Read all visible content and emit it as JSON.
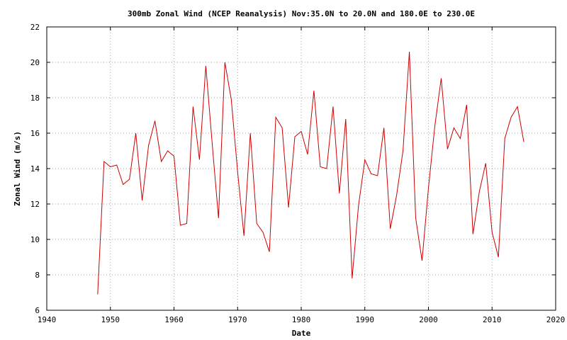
{
  "chart_data": {
    "type": "line",
    "title": "300mb Zonal Wind (NCEP Reanalysis) Nov:35.0N to 20.0N and 180.0E to 230.0E",
    "xlabel": "Date",
    "ylabel": "Zonal Wind (m/s)",
    "xlim": [
      1940,
      2020
    ],
    "ylim": [
      6,
      22
    ],
    "grid": true,
    "color": "#cc0000",
    "xticks": [
      "1940",
      "1950",
      "1960",
      "1970",
      "1980",
      "1990",
      "2000",
      "2010",
      "2020"
    ],
    "yticks": [
      "6",
      "8",
      "10",
      "12",
      "14",
      "16",
      "18",
      "20",
      "22"
    ],
    "x": [
      1948,
      1949,
      1950,
      1951,
      1952,
      1953,
      1954,
      1955,
      1956,
      1957,
      1958,
      1959,
      1960,
      1961,
      1962,
      1963,
      1964,
      1965,
      1966,
      1967,
      1968,
      1969,
      1970,
      1971,
      1972,
      1973,
      1974,
      1975,
      1976,
      1977,
      1978,
      1979,
      1980,
      1981,
      1982,
      1983,
      1984,
      1985,
      1986,
      1987,
      1988,
      1989,
      1990,
      1991,
      1992,
      1993,
      1994,
      1995,
      1996,
      1997,
      1998,
      1999,
      2000,
      2001,
      2002,
      2003,
      2004,
      2005,
      2006,
      2007,
      2008,
      2009,
      2010,
      2011,
      2012,
      2013,
      2014,
      2015
    ],
    "y": [
      6.9,
      14.4,
      14.1,
      14.2,
      13.1,
      13.4,
      16.0,
      12.2,
      15.3,
      16.7,
      14.4,
      15.0,
      14.7,
      10.8,
      10.9,
      17.5,
      14.5,
      19.8,
      15.4,
      11.2,
      20.0,
      17.9,
      13.8,
      10.2,
      16.0,
      10.9,
      10.4,
      9.3,
      16.9,
      16.3,
      11.8,
      15.8,
      16.1,
      14.8,
      18.4,
      14.1,
      14.0,
      17.5,
      12.6,
      16.8,
      7.8,
      11.9,
      14.5,
      13.7,
      13.6,
      16.3,
      10.6,
      12.5,
      15.0,
      20.6,
      11.2,
      8.8,
      12.9,
      16.4,
      19.1,
      15.1,
      16.3,
      15.7,
      17.6,
      10.3,
      12.7,
      14.3,
      10.4,
      9.0,
      15.7,
      16.9,
      17.5,
      15.5
    ]
  }
}
